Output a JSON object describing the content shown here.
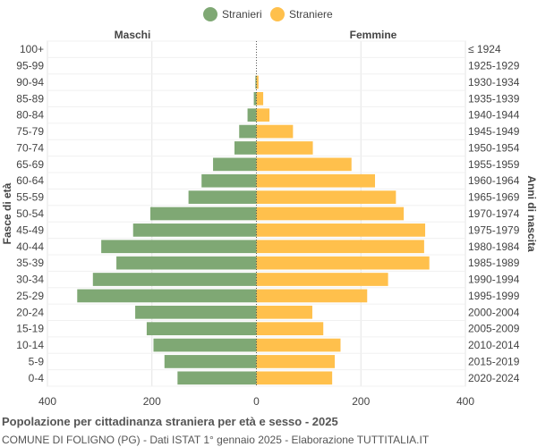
{
  "chart_data": {
    "type": "bar",
    "orientation": "horizontal-population-pyramid",
    "legend": {
      "placement": "top-center",
      "items": [
        {
          "name": "Stranieri",
          "color": "#7fa874"
        },
        {
          "name": "Straniere",
          "color": "#ffc04c"
        }
      ]
    },
    "left_header": "Maschi",
    "right_header": "Femmine",
    "ylabel_left": "Fasce di età",
    "ylabel_right": "Anni di nascita",
    "xlim": [
      -400,
      400
    ],
    "xticks": [
      "400",
      "200",
      "0",
      "200",
      "400"
    ],
    "grid": true,
    "categories": [
      "100+",
      "95-99",
      "90-94",
      "85-89",
      "80-84",
      "75-79",
      "70-74",
      "65-69",
      "60-64",
      "55-59",
      "50-54",
      "45-49",
      "40-44",
      "35-39",
      "30-34",
      "25-29",
      "20-24",
      "15-19",
      "10-14",
      "5-9",
      "0-4"
    ],
    "birth_years": [
      "≤ 1924",
      "1925-1929",
      "1930-1934",
      "1935-1939",
      "1940-1944",
      "1945-1949",
      "1950-1954",
      "1955-1959",
      "1960-1964",
      "1965-1969",
      "1970-1974",
      "1975-1979",
      "1980-1984",
      "1985-1989",
      "1990-1994",
      "1995-1999",
      "2000-2004",
      "2005-2009",
      "2010-2014",
      "2015-2019",
      "2020-2024"
    ],
    "series": [
      {
        "name": "Stranieri",
        "color": "#7fa874",
        "values": [
          0,
          0,
          2,
          5,
          17,
          33,
          42,
          83,
          105,
          130,
          203,
          236,
          297,
          268,
          313,
          343,
          232,
          210,
          197,
          176,
          151
        ]
      },
      {
        "name": "Straniere",
        "color": "#ffc04c",
        "values": [
          0,
          0,
          4,
          13,
          25,
          70,
          108,
          182,
          227,
          267,
          282,
          323,
          321,
          331,
          252,
          212,
          107,
          128,
          161,
          150,
          145
        ]
      }
    ]
  },
  "footer": {
    "title": "Popolazione per cittadinanza straniera per età e sesso - 2025",
    "subtitle": "COMUNE DI FOLIGNO (PG) - Dati ISTAT 1° gennaio 2025 - Elaborazione TUTTITALIA.IT"
  }
}
